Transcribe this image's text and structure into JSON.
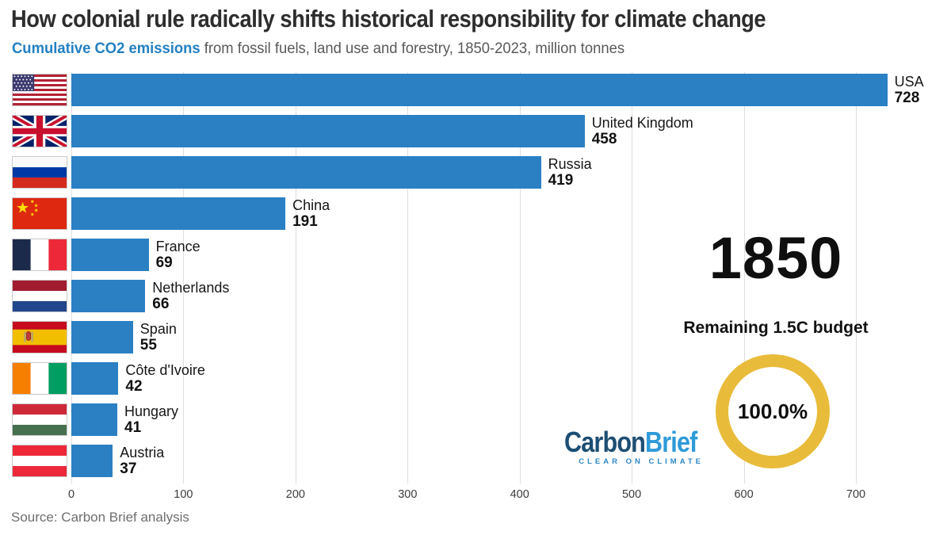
{
  "header": {
    "title": "How colonial rule radically shifts historical responsibility for climate change",
    "subtitle_highlight": "Cumulative CO2 emissions",
    "subtitle_rest": " from fossil fuels, land use and forestry, 1850-2023, million tonnes"
  },
  "chart_data": {
    "type": "bar",
    "orientation": "horizontal",
    "title": "Cumulative CO2 emissions from fossil fuels, land use and forestry, 1850-2023, million tonnes",
    "categories": [
      "USA",
      "United Kingdom",
      "Russia",
      "China",
      "France",
      "Netherlands",
      "Spain",
      "Côte d'Ivoire",
      "Hungary",
      "Austria"
    ],
    "values": [
      728,
      458,
      419,
      191,
      69,
      66,
      55,
      42,
      41,
      37
    ],
    "flags": [
      "usa",
      "united-kingdom",
      "russia",
      "china",
      "france",
      "netherlands",
      "spain",
      "cote-divoire",
      "hungary",
      "austria"
    ],
    "x_ticks": [
      0,
      100,
      200,
      300,
      400,
      500,
      600,
      700
    ],
    "xlim": [
      0,
      734
    ],
    "xlabel": "",
    "ylabel": "",
    "bar_color": "#2b80c4",
    "gridline_color": "#dedede",
    "grid": true,
    "legend": false
  },
  "overlay": {
    "year": "1850",
    "budget_label": "Remaining 1.5C budget",
    "budget_percent": "100.0%",
    "donut_color": "#e8bb3a"
  },
  "logo": {
    "part1": "Carbon",
    "part2": "Brief",
    "tagline": "CLEAR ON CLIMATE",
    "color_part1": "#1d4e74",
    "color_part2": "#2e9ad8"
  },
  "footer": {
    "source": "Source: Carbon Brief analysis"
  },
  "colors": {
    "title": "#2d2d2d",
    "subtitle_highlight": "#2380c2",
    "subtitle_text": "#595959",
    "bar": "#2b80c4",
    "donut": "#e8bb3a",
    "year_text": "#0f0f0f",
    "source_text": "#6e6e6e"
  }
}
